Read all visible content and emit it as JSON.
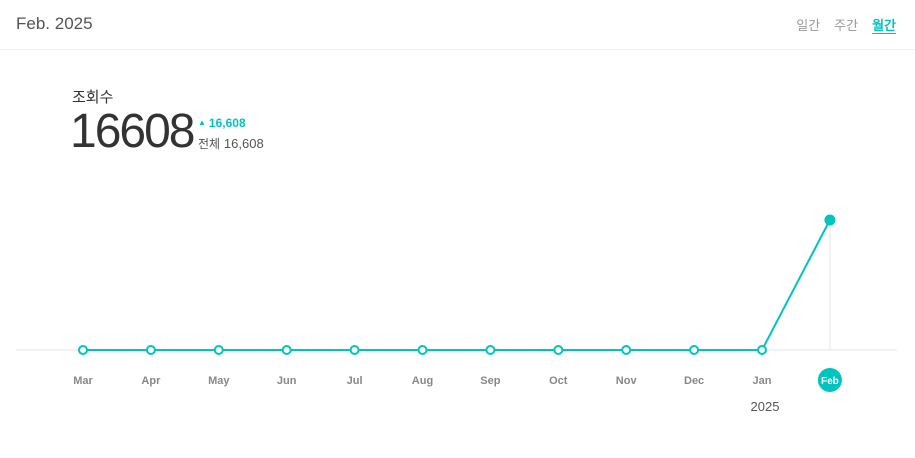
{
  "header": {
    "period_title": "Feb. 2025",
    "tabs": [
      {
        "label": "일간",
        "active": false
      },
      {
        "label": "주간",
        "active": false
      },
      {
        "label": "월간",
        "active": true
      }
    ]
  },
  "metric": {
    "label": "조회수",
    "value": "16608",
    "delta": "16,608",
    "total_label": "전체",
    "total_value": "16,608"
  },
  "colors": {
    "accent": "#00c4bd",
    "axis": "#e6e6e6",
    "marker_fill": "#ffffff"
  },
  "chart_data": {
    "type": "line",
    "categories": [
      "Mar",
      "Apr",
      "May",
      "Jun",
      "Jul",
      "Aug",
      "Sep",
      "Oct",
      "Nov",
      "Dec",
      "Jan",
      "Feb"
    ],
    "values": [
      0,
      0,
      0,
      0,
      0,
      0,
      0,
      0,
      0,
      0,
      0,
      16608
    ],
    "year_label": "2025",
    "highlighted_category": "Feb",
    "ylim": [
      0,
      16608
    ],
    "grid": false,
    "legend": "none"
  }
}
